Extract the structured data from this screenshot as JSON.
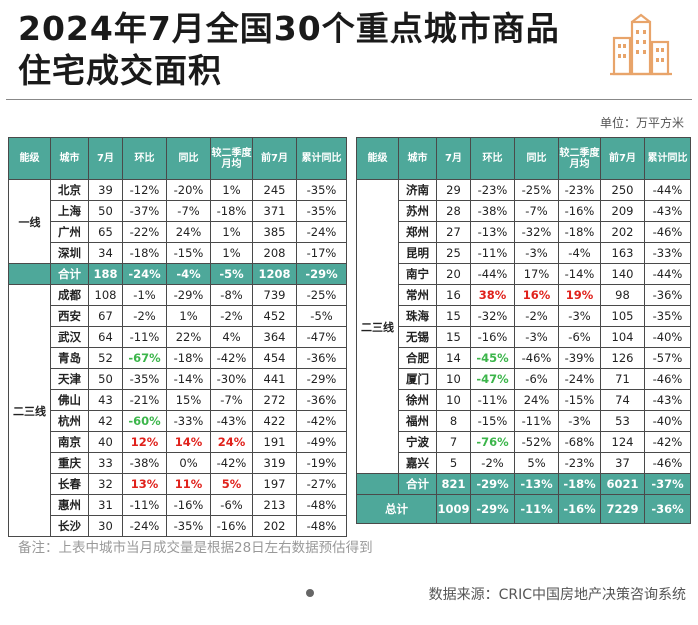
{
  "title": "2024年7月全国30个重点城市商品住宅成交面积",
  "unit_label": "单位：万平方米",
  "headers": [
    "能级",
    "城市",
    "7月",
    "环比",
    "同比",
    "较二季度月均",
    "前7月",
    "累计同比"
  ],
  "colors": {
    "header": "#4ea89a",
    "up": "#e0211b",
    "down": "#3bb54a"
  },
  "left": {
    "tier1": {
      "label": "一线",
      "rows": [
        [
          "北京",
          "39",
          "-12%",
          "-20%",
          "1%",
          "245",
          "-35%"
        ],
        [
          "上海",
          "50",
          "-37%",
          "-7%",
          "-18%",
          "371",
          "-35%"
        ],
        [
          "广州",
          "65",
          "-22%",
          "24%",
          "1%",
          "385",
          "-24%"
        ],
        [
          "深圳",
          "34",
          "-18%",
          "-15%",
          "1%",
          "208",
          "-17%"
        ]
      ]
    },
    "tier1_total": [
      "合计",
      "188",
      "-24%",
      "-4%",
      "-5%",
      "1208",
      "-29%"
    ],
    "tier23": {
      "label": "二三线",
      "rows": [
        [
          "成都",
          "108",
          "-1%",
          "-29%",
          "-8%",
          "739",
          "-25%"
        ],
        [
          "西安",
          "67",
          "-2%",
          "1%",
          "-2%",
          "452",
          "-5%"
        ],
        [
          "武汉",
          "64",
          "-11%",
          "22%",
          "4%",
          "364",
          "-47%"
        ],
        [
          "青岛",
          "52",
          "-67%",
          "-18%",
          "-42%",
          "454",
          "-36%"
        ],
        [
          "天津",
          "50",
          "-35%",
          "-14%",
          "-30%",
          "441",
          "-29%"
        ],
        [
          "佛山",
          "43",
          "-21%",
          "15%",
          "-7%",
          "272",
          "-36%"
        ],
        [
          "杭州",
          "42",
          "-60%",
          "-33%",
          "-43%",
          "422",
          "-42%"
        ],
        [
          "南京",
          "40",
          "12%",
          "14%",
          "24%",
          "191",
          "-49%"
        ],
        [
          "重庆",
          "33",
          "-38%",
          "0%",
          "-42%",
          "319",
          "-19%"
        ],
        [
          "长春",
          "32",
          "13%",
          "11%",
          "5%",
          "197",
          "-27%"
        ],
        [
          "惠州",
          "31",
          "-11%",
          "-16%",
          "-6%",
          "213",
          "-48%"
        ],
        [
          "长沙",
          "30",
          "-24%",
          "-35%",
          "-16%",
          "202",
          "-48%"
        ]
      ]
    }
  },
  "right": {
    "label": "二三线",
    "rows": [
      [
        "济南",
        "29",
        "-23%",
        "-25%",
        "-23%",
        "250",
        "-44%"
      ],
      [
        "苏州",
        "28",
        "-38%",
        "-7%",
        "-16%",
        "209",
        "-43%"
      ],
      [
        "郑州",
        "27",
        "-13%",
        "-32%",
        "-18%",
        "202",
        "-46%"
      ],
      [
        "昆明",
        "25",
        "-11%",
        "-3%",
        "-4%",
        "163",
        "-33%"
      ],
      [
        "南宁",
        "20",
        "-44%",
        "17%",
        "-14%",
        "140",
        "-44%"
      ],
      [
        "常州",
        "16",
        "38%",
        "16%",
        "19%",
        "98",
        "-36%"
      ],
      [
        "珠海",
        "15",
        "-32%",
        "-2%",
        "-3%",
        "105",
        "-35%"
      ],
      [
        "无锡",
        "15",
        "-16%",
        "-3%",
        "-6%",
        "104",
        "-40%"
      ],
      [
        "合肥",
        "14",
        "-45%",
        "-46%",
        "-39%",
        "126",
        "-57%"
      ],
      [
        "厦门",
        "10",
        "-47%",
        "-6%",
        "-24%",
        "71",
        "-46%"
      ],
      [
        "徐州",
        "10",
        "-11%",
        "24%",
        "-15%",
        "74",
        "-43%"
      ],
      [
        "福州",
        "8",
        "-15%",
        "-11%",
        "-3%",
        "53",
        "-40%"
      ],
      [
        "宁波",
        "7",
        "-76%",
        "-52%",
        "-68%",
        "124",
        "-42%"
      ],
      [
        "嘉兴",
        "5",
        "-2%",
        "5%",
        "-23%",
        "37",
        "-46%"
      ]
    ],
    "total": [
      "合计",
      "821",
      "-29%",
      "-13%",
      "-18%",
      "6021",
      "-37%"
    ],
    "grand": [
      "总计",
      "1009",
      "-29%",
      "-11%",
      "-16%",
      "7229",
      "-36%"
    ]
  },
  "note": "备注：上表中城市当月成交量是根据28日左右数据预估得到",
  "source": "数据来源：CRIC中国房地产决策咨询系统",
  "logo_icon": "city-buildings-icon"
}
